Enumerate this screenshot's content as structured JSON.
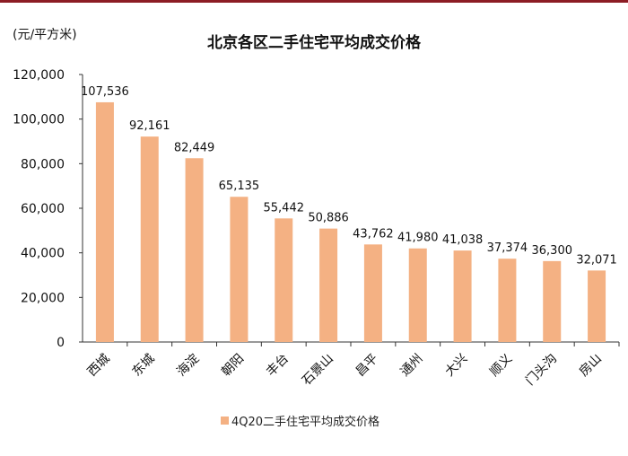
{
  "unit": "(元/平方米)",
  "chart_data": {
    "type": "bar",
    "title": "北京各区二手住宅平均成交价格",
    "ylabel": "(元/平方米)",
    "xlabel": "",
    "categories": [
      "西城",
      "东城",
      "海淀",
      "朝阳",
      "丰台",
      "石景山",
      "昌平",
      "通州",
      "大兴",
      "顺义",
      "门头沟",
      "房山"
    ],
    "values": [
      107536,
      92161,
      82449,
      65135,
      55442,
      50886,
      43762,
      41980,
      41038,
      37374,
      36300,
      32071
    ],
    "value_labels": [
      "107,536",
      "92,161",
      "82,449",
      "65,135",
      "55,442",
      "50,886",
      "43,762",
      "41,980",
      "41,038",
      "37,374",
      "36,300",
      "32,071"
    ],
    "series": [
      {
        "name": "4Q20二手住宅平均成交价格",
        "values": [
          107536,
          92161,
          82449,
          65135,
          55442,
          50886,
          43762,
          41980,
          41038,
          37374,
          36300,
          32071
        ]
      }
    ],
    "ylim": [
      0,
      120000
    ],
    "yticks": [
      0,
      20000,
      40000,
      60000,
      80000,
      100000,
      120000
    ],
    "ytick_labels": [
      "0",
      "20,000",
      "40,000",
      "60,000",
      "80,000",
      "100,000",
      "120,000"
    ],
    "grid": false,
    "legend": "bottom",
    "bar_color": "#f4b183",
    "accent_color": "#8c1c24"
  }
}
